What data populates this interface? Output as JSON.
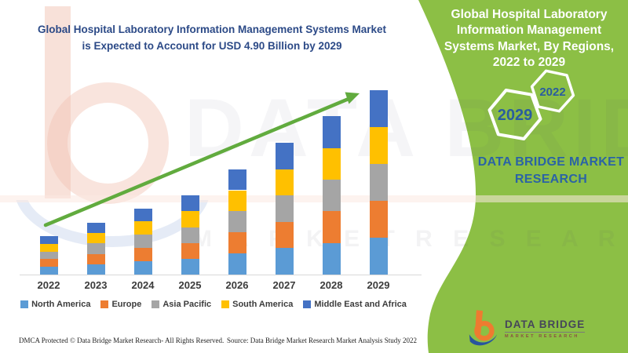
{
  "left": {
    "title_line1": "Global Hospital Laboratory Information Management Systems Market",
    "title_line2": "is Expected to Account for USD 4.90 Billion by 2029",
    "title_color": "#2c4a87"
  },
  "chart_data": {
    "type": "bar",
    "subtype": "stacked",
    "title": "Global Hospital Laboratory Information Management Systems Market is Expected to Account for USD 4.90 Billion by 2029",
    "unit": "USD Billion",
    "categories": [
      "2022",
      "2023",
      "2024",
      "2025",
      "2026",
      "2027",
      "2028",
      "2029"
    ],
    "totals": [
      1.02,
      1.38,
      1.76,
      2.1,
      2.8,
      3.5,
      4.2,
      4.9
    ],
    "highlight_value": "USD 4.90 Billion by 2029",
    "series": [
      {
        "name": "North America",
        "color": "#5B9BD5",
        "values": [
          0.204,
          0.276,
          0.352,
          0.42,
          0.56,
          0.7,
          0.84,
          0.98
        ]
      },
      {
        "name": "Europe",
        "color": "#ED7D31",
        "values": [
          0.204,
          0.276,
          0.352,
          0.42,
          0.56,
          0.7,
          0.84,
          0.98
        ]
      },
      {
        "name": "Asia Pacific",
        "color": "#A5A5A5",
        "values": [
          0.204,
          0.276,
          0.352,
          0.42,
          0.56,
          0.7,
          0.84,
          0.98
        ]
      },
      {
        "name": "South America",
        "color": "#FFC000",
        "values": [
          0.204,
          0.276,
          0.352,
          0.42,
          0.56,
          0.7,
          0.84,
          0.98
        ]
      },
      {
        "name": "Middle East and Africa",
        "color": "#4472C4",
        "values": [
          0.204,
          0.276,
          0.352,
          0.42,
          0.56,
          0.7,
          0.84,
          0.98
        ]
      }
    ],
    "legend_position": "bottom",
    "grid": false,
    "ylim": [
      0,
      5
    ],
    "annotation": "upward green trend arrow",
    "arrow_color": "#61ab3e"
  },
  "green_panel": {
    "bg_color": "#8cbf45",
    "title": "Global Hospital Laboratory Information Management Systems Market, By Regions, 2022 to 2029",
    "hex_small_label": "2022",
    "hex_large_label": "2029",
    "hex_text_color": "#2a5d9e",
    "brand_text": "DATA BRIDGE MARKET RESEARCH",
    "brand_color": "#2b63a5"
  },
  "logo": {
    "name": "DATA BRIDGE",
    "sub": "MARKET RESEARCH"
  },
  "footer": {
    "left": "DMCA Protected © Data Bridge Market Research- All Rights Reserved.",
    "right": "Source: Data Bridge Market Research Market Analysis Study 2022"
  },
  "watermark": {
    "big": "DATA BRIDGE",
    "letters": "M A R K E T   R E S E A R C H"
  }
}
